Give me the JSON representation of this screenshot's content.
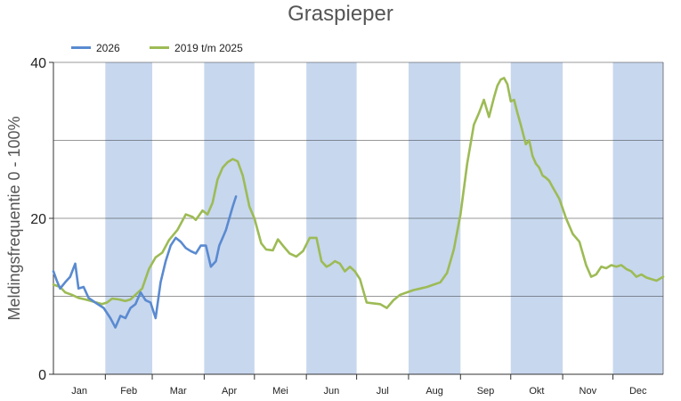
{
  "chart_data": {
    "type": "line",
    "title": "Graspieper",
    "ylabel": "Meldingsfrequentie 0 - 100%",
    "xlabel": "",
    "ylim": [
      0,
      40
    ],
    "yticks": [
      "0",
      "20",
      "40"
    ],
    "grid_y": [
      10,
      20,
      30
    ],
    "legend_position": "top-left",
    "months": [
      "Jan",
      "Feb",
      "Mar",
      "Apr",
      "Mei",
      "Jun",
      "Jul",
      "Aug",
      "Sep",
      "Okt",
      "Nov",
      "Dec"
    ],
    "shaded_months": [
      "Feb",
      "Apr",
      "Jun",
      "Aug",
      "Okt",
      "Dec"
    ],
    "x_unit": "day of year",
    "series": [
      {
        "name": "2026",
        "color": "#5a8ad0",
        "x": [
          1,
          3,
          5,
          8,
          11,
          14,
          16,
          19,
          22,
          26,
          31,
          35,
          38,
          41,
          44,
          47,
          50,
          53,
          56,
          59,
          62,
          65,
          68,
          71,
          74,
          77,
          80,
          83,
          86,
          89,
          92,
          95,
          98,
          100,
          102,
          104,
          106,
          108,
          110
        ],
        "values": [
          13.2,
          12.0,
          11.0,
          11.8,
          12.5,
          14.2,
          11.0,
          11.2,
          9.8,
          9.2,
          8.5,
          7.2,
          6.0,
          7.5,
          7.2,
          8.5,
          9.0,
          10.5,
          9.5,
          9.2,
          7.2,
          11.8,
          14.5,
          16.5,
          17.5,
          17.0,
          16.2,
          15.8,
          15.5,
          16.5,
          16.5,
          13.8,
          14.5,
          16.5,
          17.5,
          18.5,
          20.0,
          21.5,
          22.8
        ]
      },
      {
        "name": "2019 t/m 2025",
        "color": "#9dbb55",
        "x": [
          1,
          5,
          8,
          12,
          16,
          20,
          25,
          30,
          33,
          36,
          40,
          44,
          47,
          50,
          54,
          58,
          62,
          66,
          70,
          75,
          80,
          84,
          86,
          90,
          93,
          96,
          99,
          102,
          105,
          108,
          111,
          114,
          118,
          121,
          125,
          128,
          132,
          135,
          138,
          142,
          146,
          150,
          154,
          158,
          161,
          164,
          166,
          169,
          172,
          175,
          178,
          181,
          184,
          188,
          192,
          196,
          200,
          204,
          208,
          212,
          216,
          220,
          224,
          228,
          232,
          236,
          240,
          244,
          248,
          252,
          255,
          258,
          261,
          264,
          266,
          268,
          270,
          272,
          274,
          276,
          278,
          280,
          283,
          285,
          287,
          289,
          291,
          293,
          295,
          297,
          299,
          303,
          307,
          311,
          315,
          319,
          322,
          325,
          328,
          331,
          334,
          337,
          340,
          343,
          346,
          349,
          352,
          355,
          358,
          361,
          365
        ],
        "values": [
          11.5,
          11.2,
          10.5,
          10.2,
          9.8,
          9.6,
          9.3,
          9.0,
          9.2,
          9.7,
          9.6,
          9.4,
          9.6,
          10.2,
          11.0,
          13.5,
          15.0,
          15.6,
          17.2,
          18.5,
          20.5,
          20.2,
          19.8,
          21.0,
          20.5,
          22.0,
          25.0,
          26.5,
          27.2,
          27.6,
          27.3,
          25.5,
          21.5,
          20.0,
          16.8,
          16.0,
          15.9,
          17.3,
          16.5,
          15.5,
          15.1,
          15.8,
          17.5,
          17.5,
          14.5,
          13.8,
          14.0,
          14.5,
          14.2,
          13.2,
          13.8,
          13.2,
          12.2,
          9.2,
          9.1,
          9.0,
          8.5,
          9.5,
          10.2,
          10.5,
          10.8,
          11.0,
          11.2,
          11.5,
          11.8,
          13.0,
          16.0,
          20.5,
          27.0,
          32.0,
          33.5,
          35.2,
          33.0,
          35.5,
          37.0,
          37.8,
          38.0,
          37.2,
          35.0,
          35.2,
          33.5,
          32.0,
          29.5,
          30.0,
          28.0,
          27.0,
          26.5,
          25.5,
          25.2,
          24.8,
          24.0,
          22.5,
          20.0,
          18.0,
          17.0,
          14.0,
          12.5,
          12.8,
          13.8,
          13.6,
          14.0,
          13.8,
          14.0,
          13.5,
          13.2,
          12.5,
          12.8,
          12.4,
          12.2,
          12.0,
          12.5
        ]
      }
    ]
  }
}
